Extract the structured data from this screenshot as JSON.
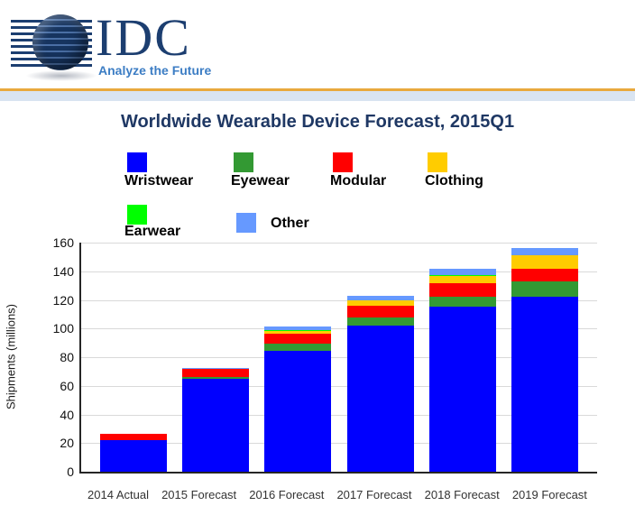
{
  "header": {
    "logo": {
      "text": "IDC",
      "tagline": "Analyze the Future"
    },
    "colors": {
      "navy": "#1C3E70",
      "tagline_blue": "#3C7DC4",
      "separator_gold": "#E9A93D",
      "separator_band": "#D9E4F1"
    }
  },
  "chart_data": {
    "type": "bar",
    "stacked": true,
    "title": "Worldwide Wearable Device Forecast, 2015Q1",
    "title_color": "#1F3864",
    "xlabel": "",
    "ylabel": "Shipments (millions)",
    "ylim": [
      0,
      160
    ],
    "ytick_step": 20,
    "grid": true,
    "legend_position": "top",
    "categories": [
      "2014 Actual",
      "2015 Forecast",
      "2016 Forecast",
      "2017 Forecast",
      "2018 Forecast",
      "2019 Forecast"
    ],
    "series": [
      {
        "name": "Wristwear",
        "color": "#0000FF",
        "values": [
          22,
          65,
          84.5,
          102,
          115,
          122.5
        ]
      },
      {
        "name": "Eyewear",
        "color": "#339933",
        "values": [
          0.3,
          1.2,
          4.8,
          6,
          7.5,
          10.5
        ]
      },
      {
        "name": "Modular",
        "color": "#FF0000",
        "values": [
          4,
          5.5,
          6.8,
          8,
          9,
          8.5
        ]
      },
      {
        "name": "Clothing",
        "color": "#FFCC00",
        "values": [
          0.1,
          0.2,
          2.5,
          3.5,
          5.5,
          9.5
        ]
      },
      {
        "name": "Earwear",
        "color": "#00FF00",
        "values": [
          0.1,
          0.1,
          0.1,
          0.1,
          0.1,
          0.2
        ]
      },
      {
        "name": "Other",
        "color": "#6699FF",
        "values": [
          0.1,
          0.3,
          2.5,
          3,
          4.5,
          5
        ]
      }
    ],
    "totals": [
      26.5,
      72.3,
      101.2,
      122.6,
      141.7,
      156.2
    ]
  }
}
